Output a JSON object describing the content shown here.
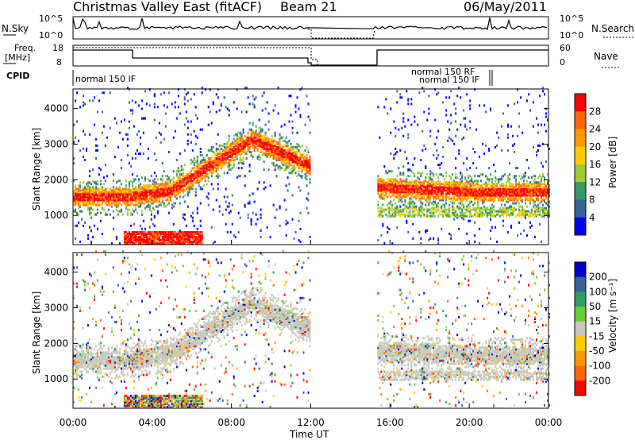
{
  "header": {
    "site": "Christmas Valley East (fitACF)",
    "beam": "Beam 21",
    "date": "06/May/2011"
  },
  "panels": {
    "nsky": {
      "label": "N.Sky",
      "ticks_left": [
        "10^5",
        "10^0"
      ],
      "ticks_right": [
        "10^5",
        "10^0"
      ],
      "right_label": "N.Search"
    },
    "freq": {
      "label_line1": "Freq.",
      "label_line2": "[MHz]",
      "ticks_left": [
        "18",
        "8"
      ],
      "ticks_right": [
        "60",
        "0"
      ],
      "right_label": "Nave"
    },
    "cpid": {
      "label": "CPID",
      "segments": [
        "normal 150 IF",
        "normal 150 RF",
        "normal 150 IF"
      ]
    }
  },
  "colorbars": {
    "power": {
      "label": "Power [dB]",
      "ticks": [
        "28",
        "24",
        "20",
        "16",
        "12",
        "8",
        "4"
      ],
      "colors": [
        "#ff0000",
        "#ff6600",
        "#ff9900",
        "#ffcc00",
        "#99cc33",
        "#339966",
        "#336699",
        "#0000ff"
      ]
    },
    "velocity": {
      "label": "Velocity [m s⁻¹]",
      "ticks": [
        "200",
        "100",
        "50",
        "15",
        "-15",
        "-50",
        "-100",
        "-200"
      ],
      "colors": [
        "#0000cc",
        "#336699",
        "#339966",
        "#66cc33",
        "#c8c8bc",
        "#ffcc00",
        "#ff9900",
        "#ff6600",
        "#ff0000"
      ]
    }
  },
  "chart_data": [
    {
      "type": "heatmap",
      "name": "power",
      "ylabel": "Slant Range [km]",
      "xlabel": "Time UT",
      "x_ticks": [
        "00:00",
        "04:00",
        "08:00",
        "12:00",
        "16:00",
        "20:00",
        "00:00"
      ],
      "xlim": [
        0,
        24
      ],
      "y_ticks": [
        1000,
        2000,
        3000,
        4000
      ],
      "ylim": [
        180,
        4550
      ],
      "data_gap_hours": [
        12.0,
        15.3
      ]
    },
    {
      "type": "heatmap",
      "name": "velocity",
      "ylabel": "Slant Range [km]",
      "xlabel": "Time UT",
      "x_ticks": [
        "00:00",
        "04:00",
        "08:00",
        "12:00",
        "16:00",
        "20:00",
        "00:00"
      ],
      "xlim": [
        0,
        24
      ],
      "y_ticks": [
        1000,
        2000,
        3000,
        4000
      ],
      "ylim": [
        180,
        4550
      ],
      "data_gap_hours": [
        12.0,
        15.3
      ]
    }
  ]
}
